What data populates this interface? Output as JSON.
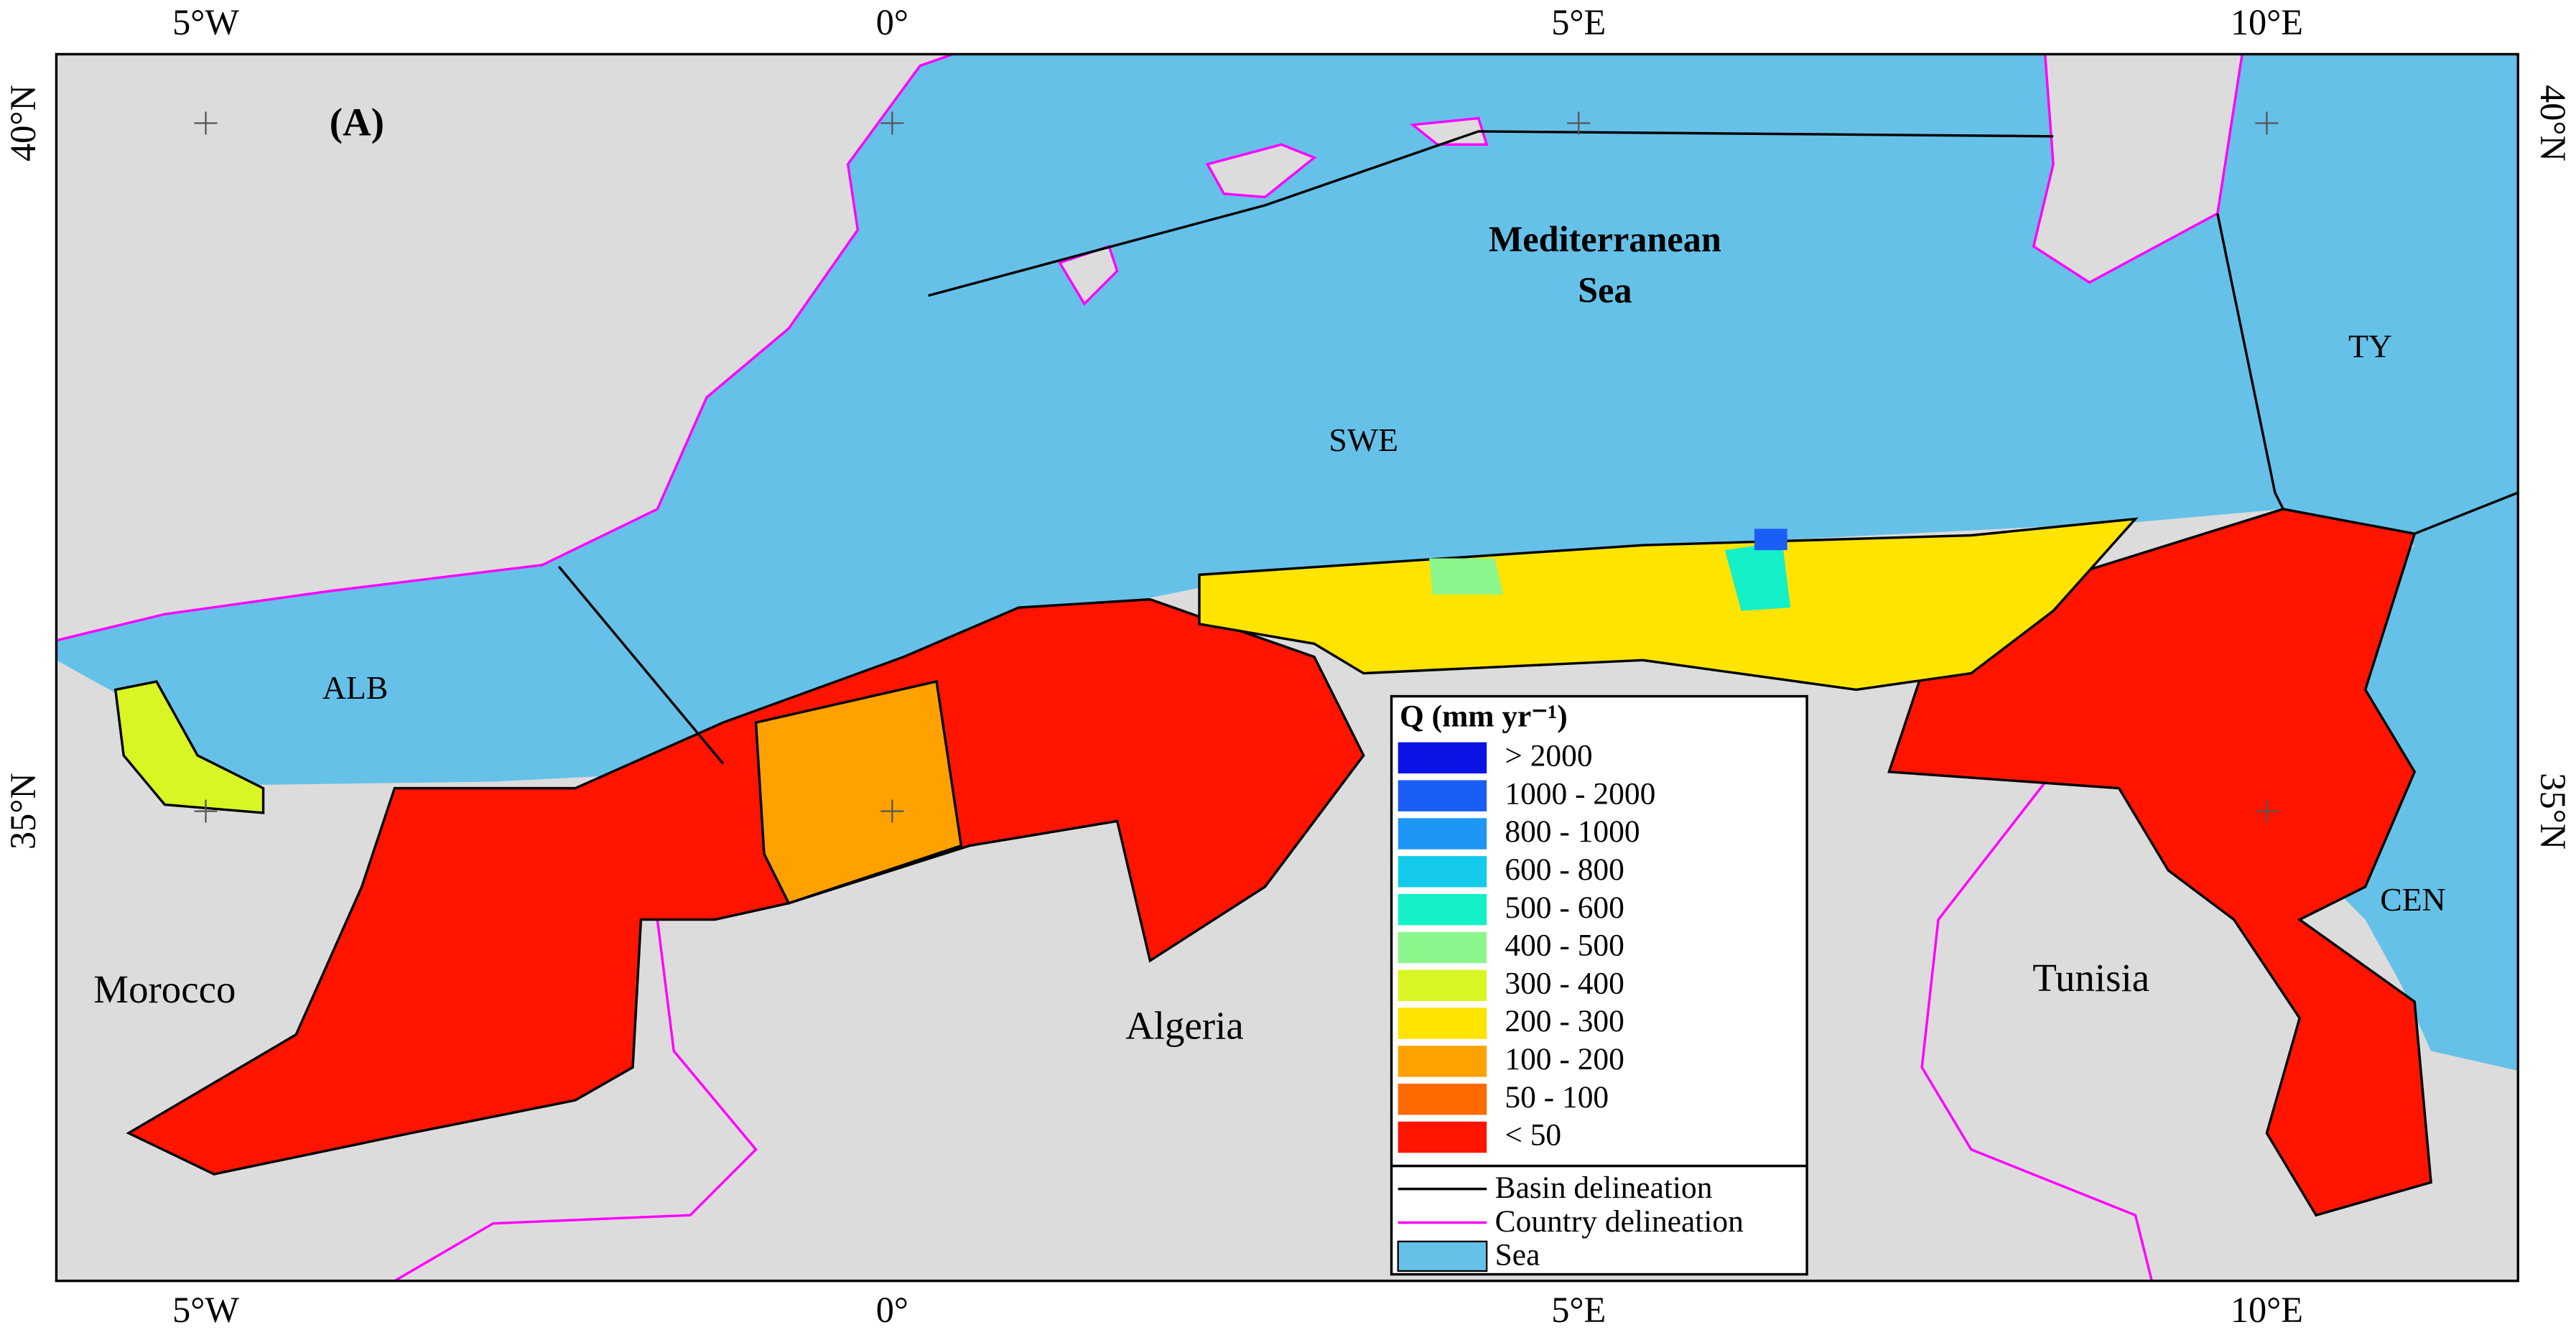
{
  "map": {
    "panel_label": "(A)",
    "lon_labels": [
      "5°W",
      "0°",
      "5°E",
      "10°E"
    ],
    "lat_labels": [
      "40°N",
      "35°N"
    ],
    "places": {
      "sea_name_1": "Mediterranean",
      "sea_name_2": "Sea",
      "swe": "SWE",
      "alb": "ALB",
      "ty": "TY",
      "cen": "CEN",
      "morocco": "Morocco",
      "algeria": "Algeria",
      "tunisia": "Tunisia"
    },
    "legend": {
      "title": "Q (mm yr⁻¹)",
      "classes": [
        {
          "label": "> 2000",
          "color": "#0a14e6"
        },
        {
          "label": "1000 - 2000",
          "color": "#1a5ef5"
        },
        {
          "label": "800 - 1000",
          "color": "#1e96f5"
        },
        {
          "label": "600 - 800",
          "color": "#14cbeb"
        },
        {
          "label": "500 - 600",
          "color": "#14f0c8"
        },
        {
          "label": "400 - 500",
          "color": "#8cf58c"
        },
        {
          "label": "300 - 400",
          "color": "#d9f523"
        },
        {
          "label": "200 - 300",
          "color": "#ffe400"
        },
        {
          "label": "100 - 200",
          "color": "#ffa200"
        },
        {
          "label": "50 - 100",
          "color": "#ff6a00"
        },
        {
          "label": "< 50",
          "color": "#ff1400"
        }
      ],
      "lines": [
        {
          "label": "Basin delineation",
          "color": "#000000"
        },
        {
          "label": "Country delineation",
          "color": "#ff00ff"
        },
        {
          "label": "Sea",
          "color": "#66c1e8"
        }
      ]
    }
  }
}
